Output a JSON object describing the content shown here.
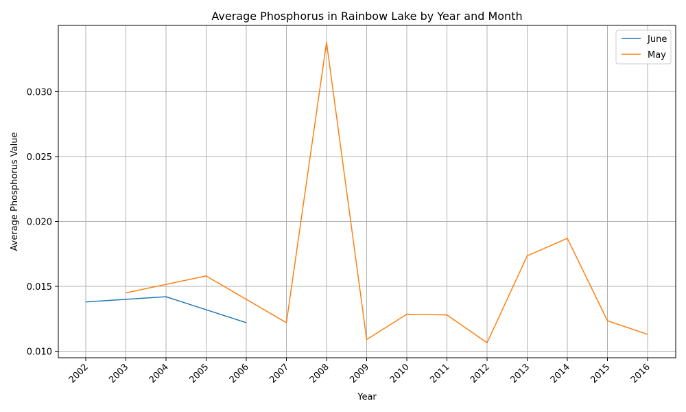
{
  "chart_data": {
    "type": "line",
    "title": "Average Phosphorus in Rainbow Lake by Year and Month",
    "xlabel": "Year",
    "ylabel": "Average Phosphorus Value",
    "x": [
      "2002",
      "2003",
      "2004",
      "2005",
      "2006",
      "2007",
      "2008",
      "2009",
      "2010",
      "2011",
      "2012",
      "2013",
      "2014",
      "2015",
      "2016"
    ],
    "ylim": [
      0.0095,
      0.0351
    ],
    "yticks": [
      0.01,
      0.015,
      0.02,
      0.025,
      0.03
    ],
    "ytick_labels": [
      "0.010",
      "0.015",
      "0.020",
      "0.025",
      "0.030"
    ],
    "grid": true,
    "legend_position": "top-right",
    "series": [
      {
        "name": "June",
        "color": "#1f77b4",
        "values": [
          0.0138,
          0.014,
          0.0142,
          0.0132,
          0.0122,
          null,
          null,
          null,
          null,
          null,
          null,
          null,
          null,
          null,
          null
        ]
      },
      {
        "name": "May",
        "color": "#ff7f0e",
        "values": [
          null,
          0.0145,
          0.01515,
          0.0158,
          0.014,
          0.0122,
          0.0338,
          0.0109,
          0.01285,
          0.0128,
          0.01065,
          0.01735,
          0.0187,
          0.01235,
          0.0113
        ]
      }
    ]
  }
}
